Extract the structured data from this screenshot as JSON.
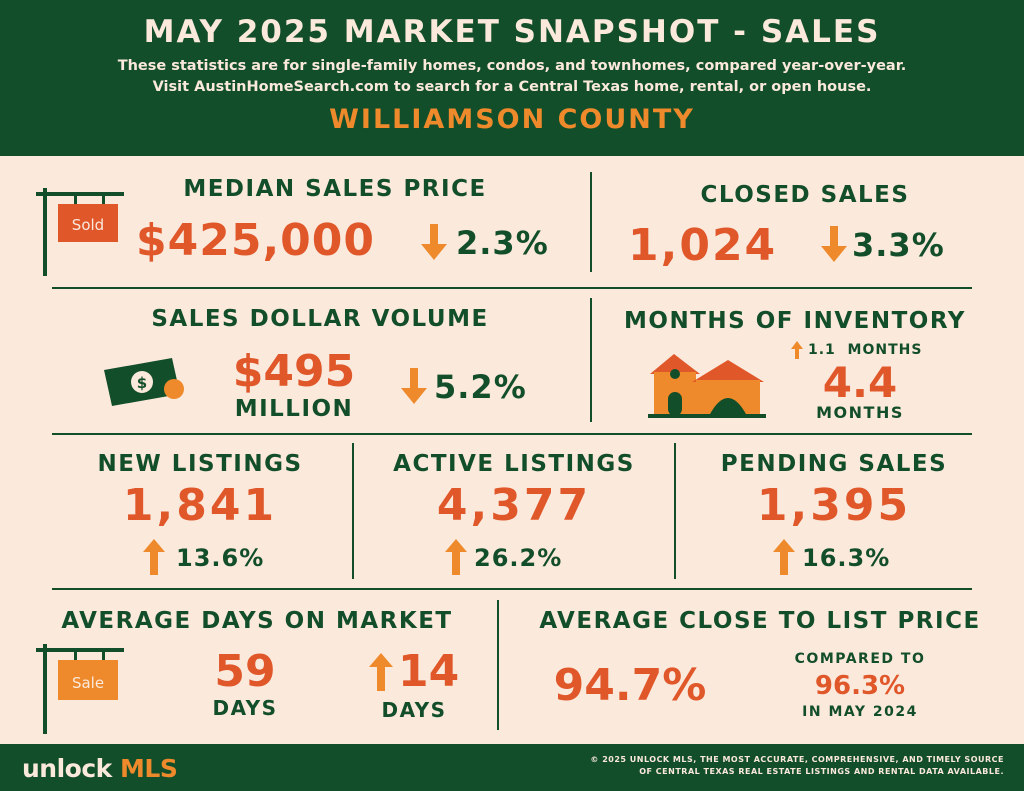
{
  "header": {
    "title": "MAY 2025 MARKET SNAPSHOT - SALES",
    "subtitle_line1": "These statistics are for single-family homes, condos, and townhomes, compared year-over-year.",
    "subtitle_line2": "Visit AustinHomeSearch.com to search for a Central Texas home, rental, or open house.",
    "county": "WILLIAMSON COUNTY"
  },
  "median_sales_price": {
    "label": "MEDIAN SALES PRICE",
    "value": "$425,000",
    "change": "2.3%",
    "direction": "down",
    "sign_text": "Sold"
  },
  "closed_sales": {
    "label": "CLOSED SALES",
    "value": "1,024",
    "change": "3.3%",
    "direction": "down"
  },
  "sales_dollar_volume": {
    "label": "SALES DOLLAR VOLUME",
    "value": "$495",
    "unit": "MILLION",
    "change": "5.2%",
    "direction": "down",
    "icon": "money-icon"
  },
  "months_of_inventory": {
    "label": "MONTHS OF INVENTORY",
    "change": "1.1  MONTHS",
    "direction": "up",
    "value": "4.4",
    "unit": "MONTHS",
    "icon": "house-icon"
  },
  "new_listings": {
    "label": "NEW LISTINGS",
    "value": "1,841",
    "change": "13.6%",
    "direction": "up"
  },
  "active_listings": {
    "label": "ACTIVE LISTINGS",
    "value": "4,377",
    "change": "26.2%",
    "direction": "up"
  },
  "pending_sales": {
    "label": "PENDING SALES",
    "value": "1,395",
    "change": "16.3%",
    "direction": "up"
  },
  "avg_days_on_market": {
    "label": "AVERAGE DAYS ON MARKET",
    "value": "59",
    "unit": "DAYS",
    "change": "14",
    "change_unit": "DAYS",
    "direction": "up",
    "sign_text": "Sale"
  },
  "avg_close_to_list": {
    "label": "AVERAGE CLOSE TO LIST PRICE",
    "value": "94.7%",
    "compared_label": "COMPARED TO",
    "compared_value": "96.3%",
    "compared_period": "IN MAY 2024"
  },
  "footer": {
    "logo_word": "unlock",
    "logo_accent": "MLS",
    "copyright_line1": "© 2025 UNLOCK MLS, THE MOST ACCURATE, COMPREHENSIVE, AND TIMELY SOURCE",
    "copyright_line2": "OF CENTRAL TEXAS REAL ESTATE LISTINGS AND RENTAL DATA AVAILABLE."
  },
  "colors": {
    "dark_green": "#134e2a",
    "orange": "#ee8a2b",
    "red_orange": "#e0572a",
    "cream": "#fbe9dc"
  }
}
